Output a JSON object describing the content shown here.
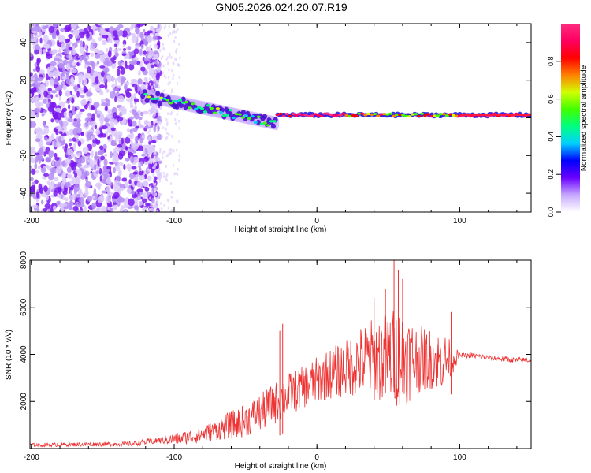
{
  "chart_data": [
    {
      "type": "heatmap",
      "title": "GN05.2026.024.20.07.R19",
      "xlabel": "Height of straight line (km)",
      "ylabel": "Frequency (Hz)",
      "xlim": [
        -201,
        150
      ],
      "ylim": [
        -50,
        50
      ],
      "xticks": [
        -200,
        -100,
        0,
        100
      ],
      "yticks": [
        40,
        20,
        0,
        -20,
        -40
      ],
      "colorbar": {
        "label": "Normalized spectral amplitude",
        "range": [
          0,
          1
        ],
        "ticks": [
          "0.0",
          "0.2",
          "0.4",
          "0.6",
          "0.8"
        ],
        "colors": [
          "#ffffff",
          "#c7a8ff",
          "#6a00ff",
          "#0000ff",
          "#00d0ff",
          "#00ff80",
          "#40ff00",
          "#d0ff00",
          "#ff8000",
          "#ff0000",
          "#ff0060",
          "#ff2b80"
        ]
      },
      "regions": [
        {
          "name": "noise",
          "x": [
            -201,
            -118
          ],
          "y": [
            -50,
            50
          ],
          "description_level": "scattered low amplitude"
        },
        {
          "name": "signal_track",
          "x": [
            -122,
            150
          ],
          "start_freq": 12,
          "end_freq": 2
        }
      ]
    },
    {
      "type": "line",
      "xlabel": "Height of straight line (km)",
      "ylabel": "SNR (10 * v/v)",
      "xlim": [
        -201,
        150
      ],
      "ylim": [
        0,
        8000
      ],
      "xticks": [
        -200,
        -100,
        0,
        100
      ],
      "yticks": [
        2000,
        4000,
        6000,
        8000
      ],
      "series": [
        {
          "name": "SNR",
          "color": "#ee3333",
          "x": [
            -201,
            -160,
            -130,
            -110,
            -100,
            -90,
            -80,
            -70,
            -60,
            -50,
            -40,
            -30,
            -20,
            -10,
            0,
            10,
            20,
            30,
            40,
            50,
            60,
            70,
            80,
            90,
            100,
            110,
            120,
            130,
            140,
            150
          ],
          "mean": [
            150,
            180,
            200,
            350,
            400,
            480,
            600,
            800,
            1000,
            1200,
            1500,
            1900,
            2300,
            2600,
            2900,
            3200,
            3400,
            3700,
            3800,
            3900,
            3900,
            3800,
            3800,
            3700,
            3950,
            3950,
            3850,
            3800,
            3750,
            3750
          ],
          "spread": [
            80,
            90,
            100,
            150,
            250,
            300,
            350,
            450,
            600,
            700,
            800,
            900,
            900,
            900,
            1000,
            1100,
            1200,
            1500,
            1800,
            2000,
            2200,
            1500,
            1300,
            1200,
            100,
            120,
            120,
            120,
            120,
            120
          ],
          "spikes": [
            {
              "x": -24,
              "value": 5300
            },
            {
              "x": -26,
              "value": 5000
            },
            {
              "x": 40,
              "value": 6400
            },
            {
              "x": 54,
              "value": 8000
            },
            {
              "x": 57,
              "value": 7600
            },
            {
              "x": 60,
              "value": 7200
            },
            {
              "x": 48,
              "value": 6800
            },
            {
              "x": 94,
              "value": 5800
            }
          ]
        }
      ]
    }
  ]
}
